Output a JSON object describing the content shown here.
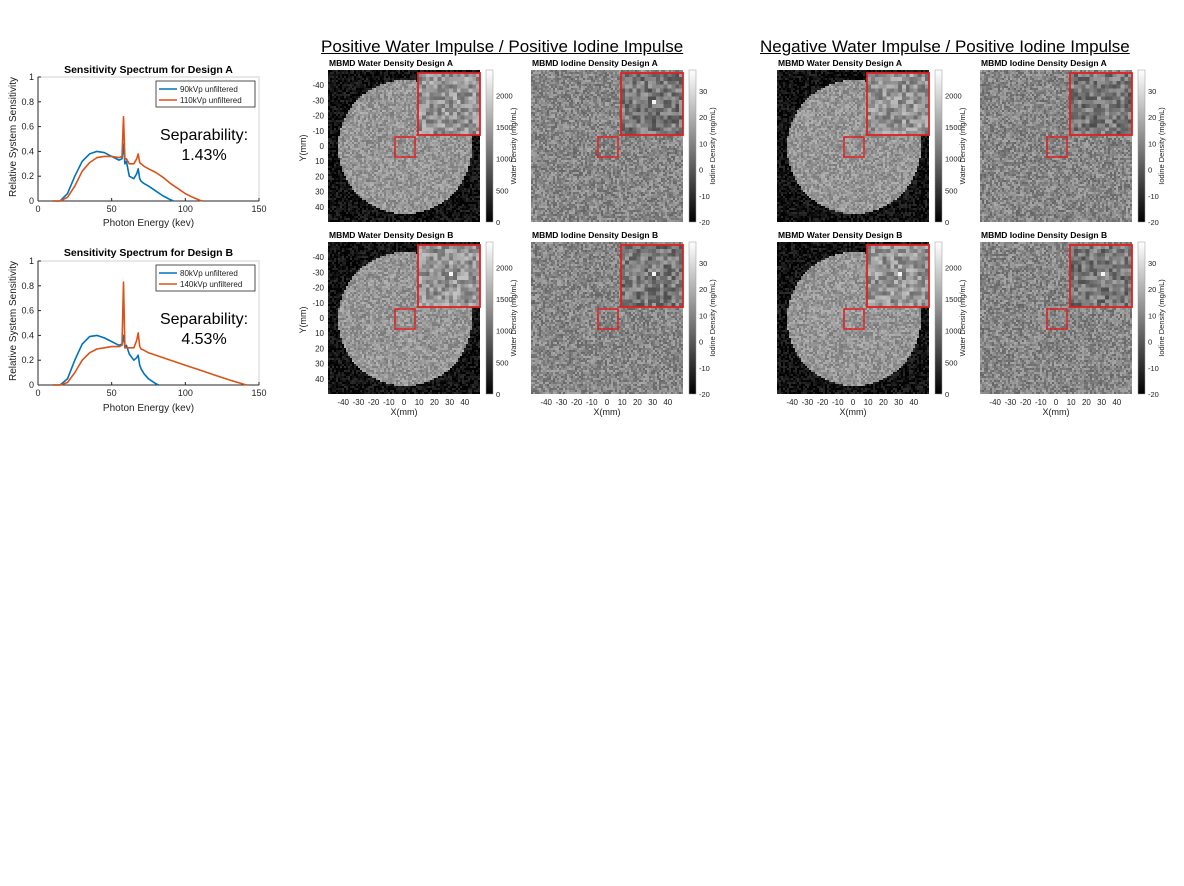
{
  "headings": {
    "positive": "Positive Water Impulse  / Positive Iodine Impulse",
    "negative": "Negative Water Impulse  / Positive Iodine Impulse"
  },
  "chart_data": [
    {
      "type": "line",
      "title": "Sensitivity Spectrum for Design A",
      "xlabel": "Photon Energy (kev)",
      "ylabel": "Relative System Sensitivity",
      "xlim": [
        0,
        150
      ],
      "ylim": [
        0,
        1
      ],
      "xticks": [
        "0",
        "50",
        "100",
        "150"
      ],
      "yticks": [
        "0",
        "0.2",
        "0.4",
        "0.6",
        "0.8",
        "1"
      ],
      "legend_position": "top-right",
      "annotation": [
        "Separability:",
        "1.43%"
      ],
      "series": [
        {
          "name": "90kVp unfiltered",
          "color": "#0072BD",
          "x": [
            10,
            15,
            20,
            25,
            30,
            35,
            40,
            45,
            50,
            55,
            57,
            58,
            59,
            60,
            62,
            65,
            67,
            68,
            69,
            70,
            72,
            75,
            80,
            85,
            90,
            92
          ],
          "y": [
            0,
            0,
            0.06,
            0.2,
            0.32,
            0.38,
            0.4,
            0.39,
            0.36,
            0.33,
            0.34,
            0.46,
            0.3,
            0.32,
            0.2,
            0.18,
            0.22,
            0.26,
            0.18,
            0.16,
            0.14,
            0.12,
            0.08,
            0.04,
            0.01,
            0
          ]
        },
        {
          "name": "110kVp unfiltered",
          "color": "#D95319",
          "x": [
            10,
            15,
            20,
            25,
            30,
            35,
            40,
            45,
            50,
            55,
            57,
            58,
            59,
            60,
            62,
            65,
            67,
            68,
            69,
            70,
            72,
            75,
            80,
            85,
            90,
            95,
            100,
            105,
            110,
            112
          ],
          "y": [
            0,
            0,
            0.03,
            0.12,
            0.24,
            0.31,
            0.35,
            0.36,
            0.36,
            0.35,
            0.36,
            0.68,
            0.34,
            0.34,
            0.3,
            0.3,
            0.34,
            0.38,
            0.31,
            0.3,
            0.28,
            0.26,
            0.23,
            0.19,
            0.14,
            0.1,
            0.06,
            0.03,
            0.005,
            0
          ]
        }
      ]
    },
    {
      "type": "line",
      "title": "Sensitivity Spectrum for Design B",
      "xlabel": "Photon Energy (kev)",
      "ylabel": "Relative System Sensitivity",
      "xlim": [
        0,
        150
      ],
      "ylim": [
        0,
        1
      ],
      "xticks": [
        "0",
        "50",
        "100",
        "150"
      ],
      "yticks": [
        "0",
        "0.2",
        "0.4",
        "0.6",
        "0.8",
        "1"
      ],
      "legend_position": "top-right",
      "annotation": [
        "Separability:",
        "4.53%"
      ],
      "series": [
        {
          "name": "80kVp unfiltered",
          "color": "#0072BD",
          "x": [
            10,
            15,
            20,
            25,
            30,
            35,
            40,
            45,
            50,
            55,
            57,
            58,
            59,
            60,
            62,
            65,
            67,
            68,
            69,
            70,
            72,
            75,
            80,
            82
          ],
          "y": [
            0,
            0,
            0.05,
            0.2,
            0.33,
            0.39,
            0.4,
            0.38,
            0.35,
            0.32,
            0.33,
            0.4,
            0.3,
            0.32,
            0.25,
            0.2,
            0.22,
            0.24,
            0.16,
            0.13,
            0.09,
            0.05,
            0.01,
            0
          ]
        },
        {
          "name": "140kVp unfiltered",
          "color": "#D95319",
          "x": [
            10,
            15,
            20,
            25,
            30,
            35,
            40,
            45,
            50,
            55,
            57,
            58,
            59,
            60,
            62,
            65,
            67,
            68,
            69,
            70,
            72,
            75,
            80,
            90,
            100,
            110,
            120,
            130,
            140,
            142
          ],
          "y": [
            0,
            0,
            0.02,
            0.1,
            0.2,
            0.26,
            0.29,
            0.3,
            0.31,
            0.31,
            0.32,
            0.83,
            0.3,
            0.3,
            0.3,
            0.3,
            0.36,
            0.42,
            0.31,
            0.29,
            0.28,
            0.26,
            0.24,
            0.2,
            0.16,
            0.12,
            0.08,
            0.04,
            0.005,
            0
          ]
        }
      ]
    }
  ],
  "image_panels": [
    {
      "title": "MBMD Water Density Design A",
      "material": "water",
      "design": "A",
      "group": "positive",
      "colorbar_label": "Water Density (mg/mL)",
      "colorbar_ticks": [
        "2000",
        "1500",
        "1000",
        "500",
        "0"
      ],
      "colorbar_range": [
        0,
        2400
      ],
      "y_ticks": [
        "-40",
        "-30",
        "-20",
        "-10",
        "0",
        "10",
        "20",
        "30",
        "40"
      ],
      "y_label": "Y(mm)",
      "x_ticks": [],
      "x_label": ""
    },
    {
      "title": "MBMD Iodine Density Design A",
      "material": "iodine",
      "design": "A",
      "group": "positive",
      "colorbar_label": "Iodine Density (mg/mL)",
      "colorbar_ticks": [
        "30",
        "20",
        "10",
        "0",
        "-10",
        "-20"
      ],
      "colorbar_range": [
        -20,
        38
      ],
      "y_ticks": [],
      "y_label": "",
      "x_ticks": [],
      "x_label": ""
    },
    {
      "title": "MBMD Water Density Design A",
      "material": "water",
      "design": "A",
      "group": "negative",
      "colorbar_label": "Water Density (mg/mL)",
      "colorbar_ticks": [
        "2000",
        "1500",
        "1000",
        "500",
        "0"
      ],
      "colorbar_range": [
        0,
        2400
      ],
      "y_ticks": [],
      "y_label": "",
      "x_ticks": [],
      "x_label": ""
    },
    {
      "title": "MBMD Iodine Density Design A",
      "material": "iodine",
      "design": "A",
      "group": "negative",
      "colorbar_label": "Iodine Density (mg/mL)",
      "colorbar_ticks": [
        "30",
        "20",
        "10",
        "0",
        "-10",
        "-20"
      ],
      "colorbar_range": [
        -20,
        38
      ],
      "y_ticks": [],
      "y_label": "",
      "x_ticks": [],
      "x_label": ""
    },
    {
      "title": "MBMD Water Density Design B",
      "material": "water",
      "design": "B",
      "group": "positive",
      "colorbar_label": "Water Density (mg/mL)",
      "colorbar_ticks": [
        "2000",
        "1500",
        "1000",
        "500",
        "0"
      ],
      "colorbar_range": [
        0,
        2400
      ],
      "y_ticks": [
        "-40",
        "-30",
        "-20",
        "-10",
        "0",
        "10",
        "20",
        "30",
        "40"
      ],
      "y_label": "Y(mm)",
      "x_ticks": [
        "-40",
        "-30",
        "-20",
        "-10",
        "0",
        "10",
        "20",
        "30",
        "40"
      ],
      "x_label": "X(mm)"
    },
    {
      "title": "MBMD Iodine Density Design B",
      "material": "iodine",
      "design": "B",
      "group": "positive",
      "colorbar_label": "Iodine Density (mg/mL)",
      "colorbar_ticks": [
        "30",
        "20",
        "10",
        "0",
        "-10",
        "-20"
      ],
      "colorbar_range": [
        -20,
        38
      ],
      "y_ticks": [],
      "y_label": "",
      "x_ticks": [
        "-40",
        "-30",
        "-20",
        "-10",
        "0",
        "10",
        "20",
        "30",
        "40"
      ],
      "x_label": "X(mm)"
    },
    {
      "title": "MBMD Water Density Design B",
      "material": "water",
      "design": "B",
      "group": "negative",
      "colorbar_label": "Water Density (mg/mL)",
      "colorbar_ticks": [
        "2000",
        "1500",
        "1000",
        "500",
        "0"
      ],
      "colorbar_range": [
        0,
        2400
      ],
      "y_ticks": [],
      "y_label": "",
      "x_ticks": [
        "-40",
        "-30",
        "-20",
        "-10",
        "0",
        "10",
        "20",
        "30",
        "40"
      ],
      "x_label": "X(mm)"
    },
    {
      "title": "MBMD Iodine Density Design B",
      "material": "iodine",
      "design": "B",
      "group": "negative",
      "colorbar_label": "Iodine Density (mg/mL)",
      "colorbar_ticks": [
        "30",
        "20",
        "10",
        "0",
        "-10",
        "-20"
      ],
      "colorbar_range": [
        -20,
        38
      ],
      "y_ticks": [],
      "y_label": "",
      "x_ticks": [
        "-40",
        "-30",
        "-20",
        "-10",
        "0",
        "10",
        "20",
        "30",
        "40"
      ],
      "x_label": "X(mm)"
    }
  ],
  "colors": {
    "roi_box": "#e02020",
    "series_blue": "#0072BD",
    "series_orange": "#D95319"
  }
}
